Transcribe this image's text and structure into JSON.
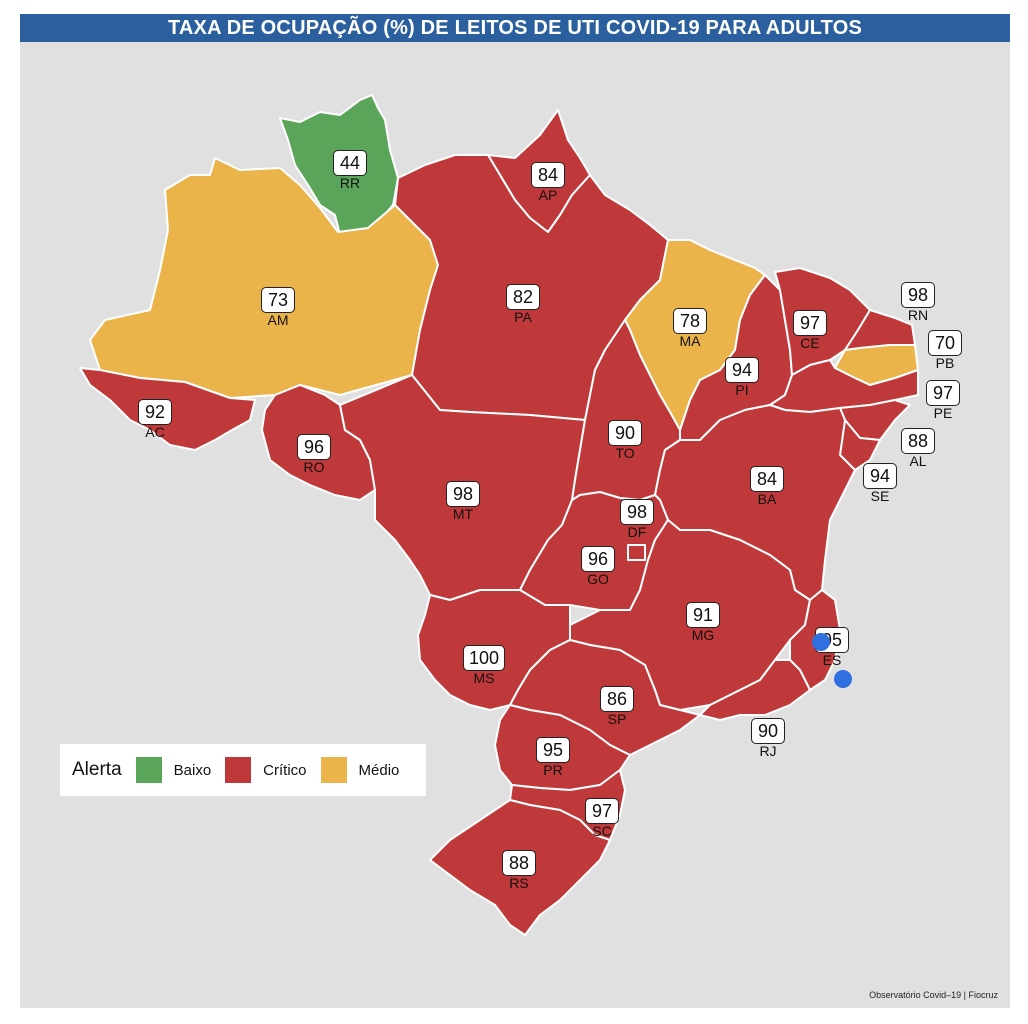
{
  "title": "TAXA DE OCUPAÇÃO (%) DE LEITOS DE UTI COVID-19 PARA ADULTOS",
  "colors": {
    "baixo": "#5aa55a",
    "critico": "#c0393a",
    "medio": "#eab44a",
    "title_bg": "#2b5f9e"
  },
  "states": [
    {
      "abbr": "RR",
      "value": "44",
      "alert": "baixo"
    },
    {
      "abbr": "AP",
      "value": "84",
      "alert": "critico"
    },
    {
      "abbr": "AM",
      "value": "73",
      "alert": "medio"
    },
    {
      "abbr": "PA",
      "value": "82",
      "alert": "critico"
    },
    {
      "abbr": "MA",
      "value": "78",
      "alert": "medio"
    },
    {
      "abbr": "CE",
      "value": "97",
      "alert": "critico"
    },
    {
      "abbr": "RN",
      "value": "98",
      "alert": "critico"
    },
    {
      "abbr": "PB",
      "value": "70",
      "alert": "medio"
    },
    {
      "abbr": "PE",
      "value": "97",
      "alert": "critico"
    },
    {
      "abbr": "PI",
      "value": "94",
      "alert": "critico"
    },
    {
      "abbr": "AC",
      "value": "92",
      "alert": "critico"
    },
    {
      "abbr": "RO",
      "value": "96",
      "alert": "critico"
    },
    {
      "abbr": "TO",
      "value": "90",
      "alert": "critico"
    },
    {
      "abbr": "AL",
      "value": "88",
      "alert": "critico"
    },
    {
      "abbr": "SE",
      "value": "94",
      "alert": "critico"
    },
    {
      "abbr": "MT",
      "value": "98",
      "alert": "critico"
    },
    {
      "abbr": "BA",
      "value": "84",
      "alert": "critico"
    },
    {
      "abbr": "DF",
      "value": "98",
      "alert": "critico"
    },
    {
      "abbr": "GO",
      "value": "96",
      "alert": "critico"
    },
    {
      "abbr": "MG",
      "value": "91",
      "alert": "critico"
    },
    {
      "abbr": "ES",
      "value": "95",
      "alert": "critico"
    },
    {
      "abbr": "MS",
      "value": "100",
      "alert": "critico"
    },
    {
      "abbr": "SP",
      "value": "86",
      "alert": "critico"
    },
    {
      "abbr": "RJ",
      "value": "90",
      "alert": "critico"
    },
    {
      "abbr": "PR",
      "value": "95",
      "alert": "critico"
    },
    {
      "abbr": "SC",
      "value": "97",
      "alert": "critico"
    },
    {
      "abbr": "RS",
      "value": "88",
      "alert": "critico"
    }
  ],
  "legend": {
    "title": "Alerta",
    "items": [
      {
        "label": "Baixo",
        "color": "#5aa55a"
      },
      {
        "label": "Crítico",
        "color": "#c0393a"
      },
      {
        "label": "Médio",
        "color": "#eab44a"
      }
    ]
  },
  "credit": "Observatório Covid–19 | Fiocruz"
}
